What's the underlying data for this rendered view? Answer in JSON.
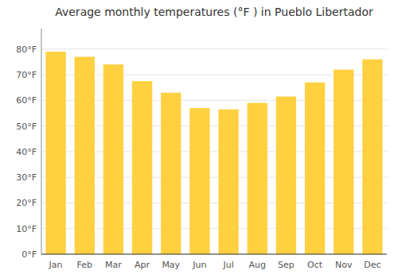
{
  "chart_data": {
    "type": "bar",
    "title": "Average monthly temperatures (°F ) in Pueblo Libertador",
    "categories": [
      "Jan",
      "Feb",
      "Mar",
      "Apr",
      "May",
      "Jun",
      "Jul",
      "Aug",
      "Sep",
      "Oct",
      "Nov",
      "Dec"
    ],
    "values": [
      79,
      77,
      74,
      67.5,
      63,
      57,
      56.5,
      59,
      61.5,
      67,
      72,
      76
    ],
    "color": "#FFD040",
    "ylim": [
      0,
      88
    ],
    "yticks": [
      {
        "value": 0,
        "label": "0°F"
      },
      {
        "value": 10,
        "label": "10°F"
      },
      {
        "value": 20,
        "label": "20°F"
      },
      {
        "value": 30,
        "label": "30°F"
      },
      {
        "value": 40,
        "label": "40°F"
      },
      {
        "value": 50,
        "label": "50°F"
      },
      {
        "value": 60,
        "label": "60°F"
      },
      {
        "value": 70,
        "label": "70°F"
      },
      {
        "value": 80,
        "label": "80°F"
      }
    ],
    "grid": true
  }
}
